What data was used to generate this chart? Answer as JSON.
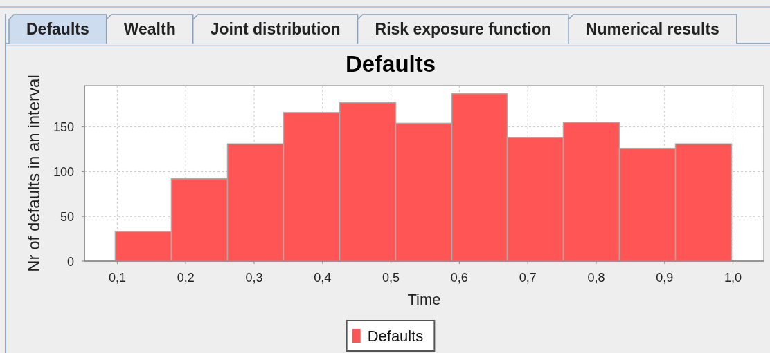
{
  "chart_data": {
    "type": "histogram",
    "title": "Defaults",
    "xlabel": "Time",
    "ylabel": "Nr of defaults in an interval",
    "bins": [
      0.097,
      0.179,
      0.261,
      0.343,
      0.425,
      0.507,
      0.589,
      0.67,
      0.752,
      0.834,
      0.916,
      0.998
    ],
    "series": [
      {
        "name": "Defaults",
        "color": "#ff5555",
        "values": [
          33,
          92,
          131,
          166,
          177,
          154,
          187,
          138,
          155,
          126,
          131
        ]
      }
    ],
    "xlim": [
      0.052,
      1.045
    ],
    "ylim": [
      0,
      196
    ],
    "xticks": [
      {
        "value": 0.1,
        "label": "0,1"
      },
      {
        "value": 0.2,
        "label": "0,2"
      },
      {
        "value": 0.3,
        "label": "0,3"
      },
      {
        "value": 0.4,
        "label": "0,4"
      },
      {
        "value": 0.5,
        "label": "0,5"
      },
      {
        "value": 0.6,
        "label": "0,6"
      },
      {
        "value": 0.7,
        "label": "0,7"
      },
      {
        "value": 0.8,
        "label": "0,8"
      },
      {
        "value": 0.9,
        "label": "0,9"
      },
      {
        "value": 1,
        "label": "1,0"
      }
    ],
    "yticks": [
      0,
      50,
      100,
      150
    ],
    "grid": true,
    "legend": "bottom",
    "annotations": [
      "Defaults",
      "Wealth",
      "Joint distribution",
      "Risk exposure function",
      "Numerical results"
    ]
  }
}
